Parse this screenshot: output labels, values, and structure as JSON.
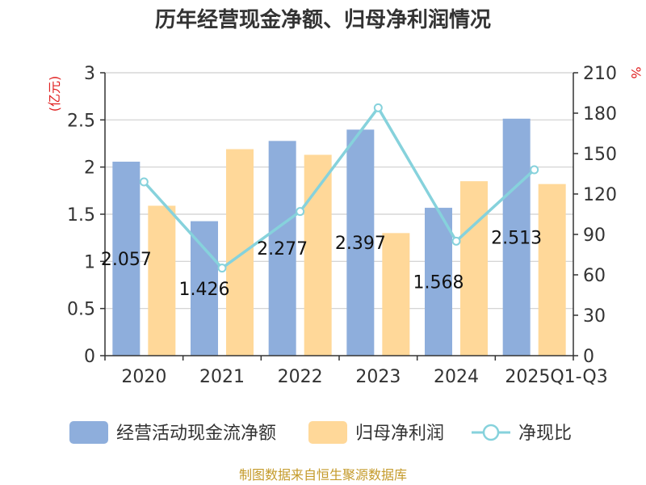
{
  "chart_data": {
    "type": "bar",
    "title": "历年经营现金净额、归母净利润情况",
    "categories": [
      "2020",
      "2021",
      "2022",
      "2023",
      "2024",
      "2025Q1-Q3"
    ],
    "series": [
      {
        "name": "经营活动现金流净额",
        "type": "bar",
        "axis": "left",
        "color": "#8eaedc",
        "values": [
          2.057,
          1.426,
          2.277,
          2.397,
          1.568,
          2.513
        ]
      },
      {
        "name": "归母净利润",
        "type": "bar",
        "axis": "left",
        "color": "#ffd899",
        "values": [
          1.59,
          2.19,
          2.13,
          1.3,
          1.85,
          1.82
        ]
      },
      {
        "name": "净现比",
        "type": "line",
        "axis": "right",
        "color": "#86d2dc",
        "values": [
          129,
          65,
          107,
          184,
          85,
          138
        ]
      }
    ],
    "data_labels": [
      "2.057",
      "1.426",
      "2.277",
      "2.397",
      "1.568",
      "2.513"
    ],
    "y_left": {
      "unit": "(亿元)",
      "min": 0,
      "max": 3,
      "ticks": [
        "0",
        "0.5",
        "1",
        "1.5",
        "2",
        "2.5",
        "3"
      ]
    },
    "y_right": {
      "unit": "%",
      "min": 0,
      "max": 210,
      "ticks": [
        "0",
        "30",
        "60",
        "90",
        "120",
        "150",
        "180",
        "210"
      ]
    },
    "grid": true,
    "legend_position": "bottom",
    "source": "制图数据来自恒生聚源数据库"
  }
}
